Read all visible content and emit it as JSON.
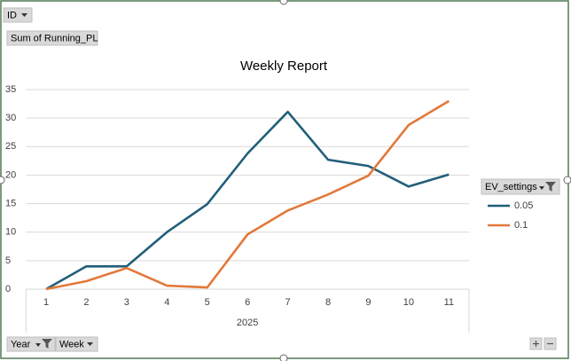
{
  "chart_data": {
    "type": "line",
    "title": "Weekly Report",
    "report_filter": "ID",
    "value_field": "Sum of Running_PL",
    "legend_title": "EV_settings",
    "axis_fields": [
      "Year",
      "Week"
    ],
    "x_group_label": "2025",
    "categories": [
      "1",
      "2",
      "3",
      "4",
      "5",
      "6",
      "7",
      "8",
      "9",
      "10",
      "11"
    ],
    "series": [
      {
        "name": "0.05",
        "color": "#215f79",
        "values": [
          0,
          4.0,
          4.0,
          10.0,
          14.9,
          23.8,
          31.1,
          22.7,
          21.6,
          18.0,
          20.1
        ]
      },
      {
        "name": "0.1",
        "color": "#e2793a",
        "values": [
          0,
          1.4,
          3.7,
          0.6,
          0.3,
          9.6,
          13.8,
          16.6,
          19.9,
          28.8,
          33.0
        ]
      }
    ],
    "ylim": [
      0,
      35
    ],
    "yticks": [
      0,
      5,
      10,
      15,
      20,
      25,
      30,
      35
    ],
    "grid": true,
    "legend": "right"
  }
}
